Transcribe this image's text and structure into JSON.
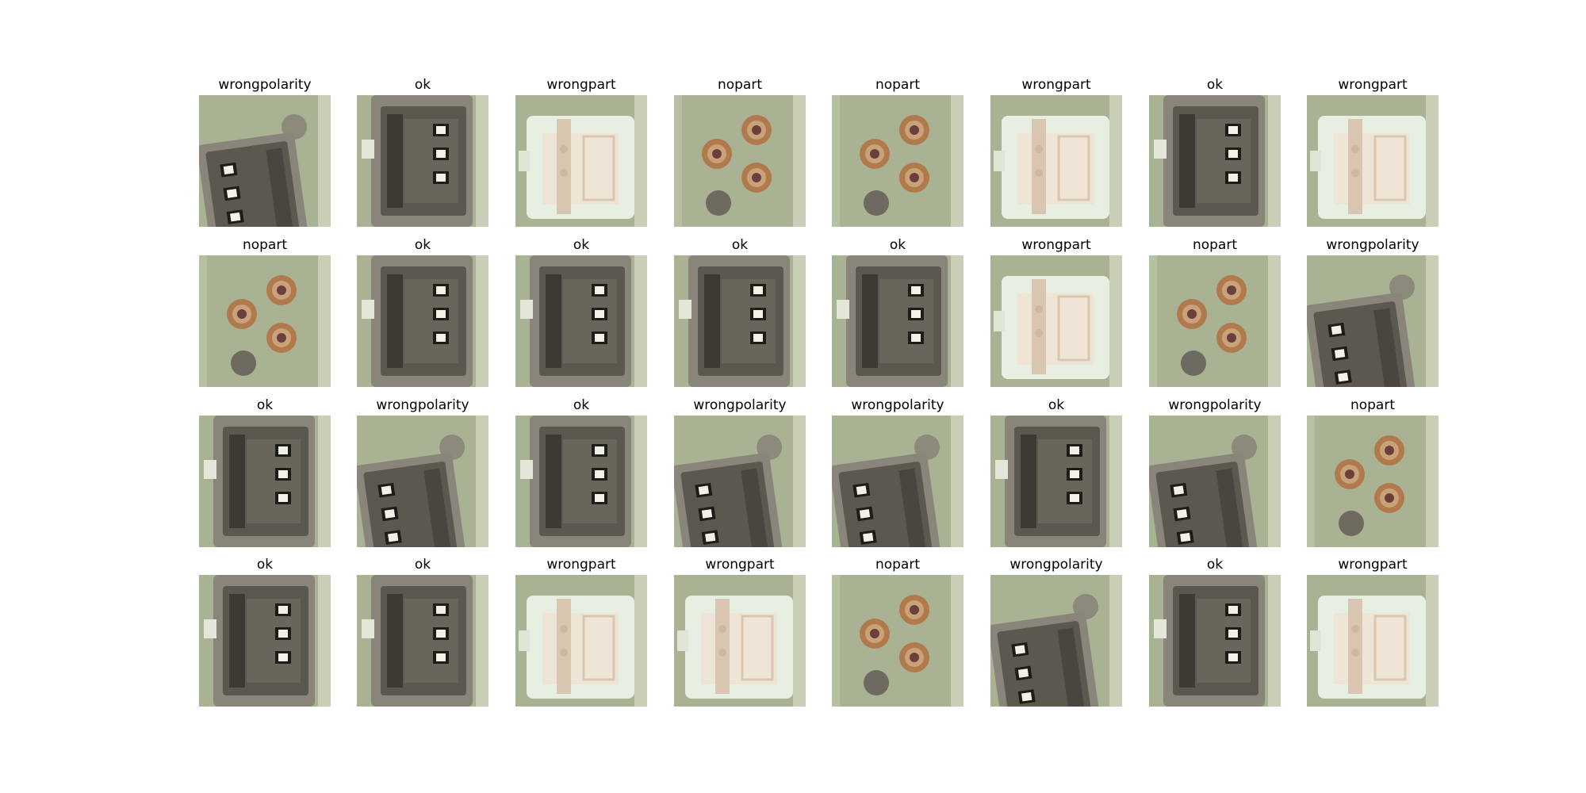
{
  "figure": {
    "rows": [
      [
        {
          "label": "wrongpolarity",
          "kind": "wrongpolarity"
        },
        {
          "label": "ok",
          "kind": "ok"
        },
        {
          "label": "wrongpart",
          "kind": "wrongpart"
        },
        {
          "label": "nopart",
          "kind": "nopart"
        },
        {
          "label": "nopart",
          "kind": "nopart"
        },
        {
          "label": "wrongpart",
          "kind": "wrongpart"
        },
        {
          "label": "ok",
          "kind": "ok"
        },
        {
          "label": "wrongpart",
          "kind": "wrongpart"
        }
      ],
      [
        {
          "label": "nopart",
          "kind": "nopart"
        },
        {
          "label": "ok",
          "kind": "ok"
        },
        {
          "label": "ok",
          "kind": "ok"
        },
        {
          "label": "ok",
          "kind": "ok"
        },
        {
          "label": "ok",
          "kind": "ok"
        },
        {
          "label": "wrongpart",
          "kind": "wrongpart"
        },
        {
          "label": "nopart",
          "kind": "nopart"
        },
        {
          "label": "wrongpolarity",
          "kind": "wrongpolarity"
        }
      ],
      [
        {
          "label": "ok",
          "kind": "ok"
        },
        {
          "label": "wrongpolarity",
          "kind": "wrongpolarity"
        },
        {
          "label": "ok",
          "kind": "ok"
        },
        {
          "label": "wrongpolarity",
          "kind": "wrongpolarity"
        },
        {
          "label": "wrongpolarity",
          "kind": "wrongpolarity"
        },
        {
          "label": "ok",
          "kind": "ok"
        },
        {
          "label": "wrongpolarity",
          "kind": "wrongpolarity"
        },
        {
          "label": "nopart",
          "kind": "nopart"
        }
      ],
      [
        {
          "label": "ok",
          "kind": "ok"
        },
        {
          "label": "ok",
          "kind": "ok"
        },
        {
          "label": "wrongpart",
          "kind": "wrongpart"
        },
        {
          "label": "wrongpart",
          "kind": "wrongpart"
        },
        {
          "label": "nopart",
          "kind": "nopart"
        },
        {
          "label": "wrongpolarity",
          "kind": "wrongpolarity"
        },
        {
          "label": "ok",
          "kind": "ok"
        },
        {
          "label": "wrongpart",
          "kind": "wrongpart"
        }
      ]
    ],
    "colors": {
      "board": "#a9b292",
      "connector_body": "#5d584f",
      "connector_rim": "#8a857a",
      "pin": "#f3f0e6",
      "white_part": "#e6efe2",
      "white_part_inner": "#d9c6b0",
      "pad_ring": "#b07a4c",
      "pad_center": "#6b3f3b",
      "via": "#6e6a60"
    }
  }
}
